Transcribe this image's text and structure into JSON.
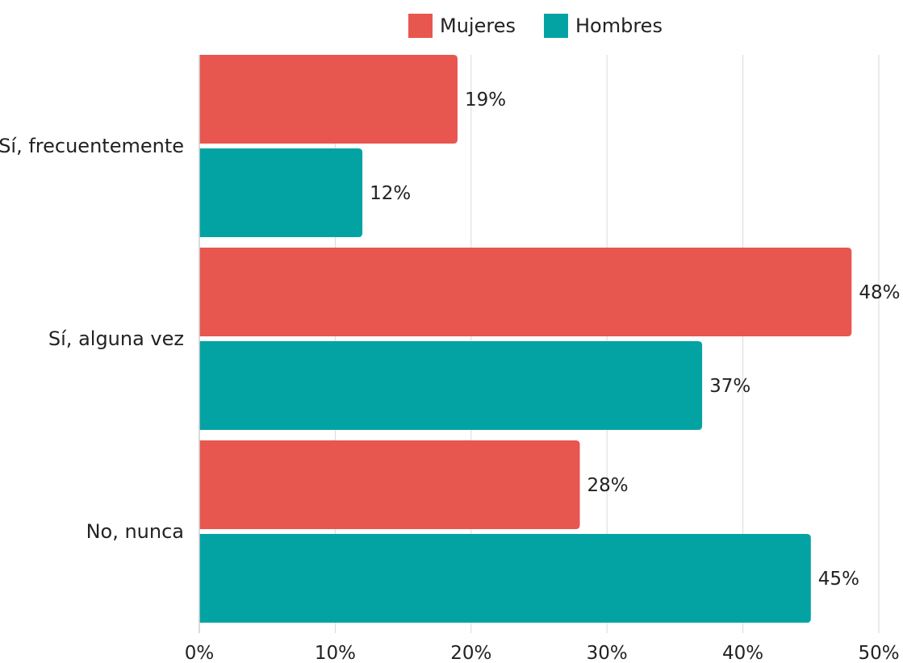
{
  "chart_data": {
    "type": "bar",
    "orientation": "horizontal",
    "categories": [
      "Sí, frecuentemente",
      "Sí, alguna vez",
      "No, nunca"
    ],
    "series": [
      {
        "name": "Mujeres",
        "color": "#e85650",
        "values": [
          19,
          48,
          28
        ],
        "labels": [
          "19%",
          "48%",
          "28%"
        ]
      },
      {
        "name": "Hombres",
        "color": "#03a3a4",
        "values": [
          12,
          37,
          45
        ],
        "labels": [
          "12%",
          "37%",
          "45%"
        ]
      }
    ],
    "xlim": [
      0,
      50
    ],
    "x_ticks": [
      0,
      10,
      20,
      30,
      40,
      50
    ],
    "x_tick_labels": [
      "0%",
      "10%",
      "20%",
      "30%",
      "40%",
      "50%"
    ],
    "grid": true,
    "legend_position": "top-center"
  }
}
